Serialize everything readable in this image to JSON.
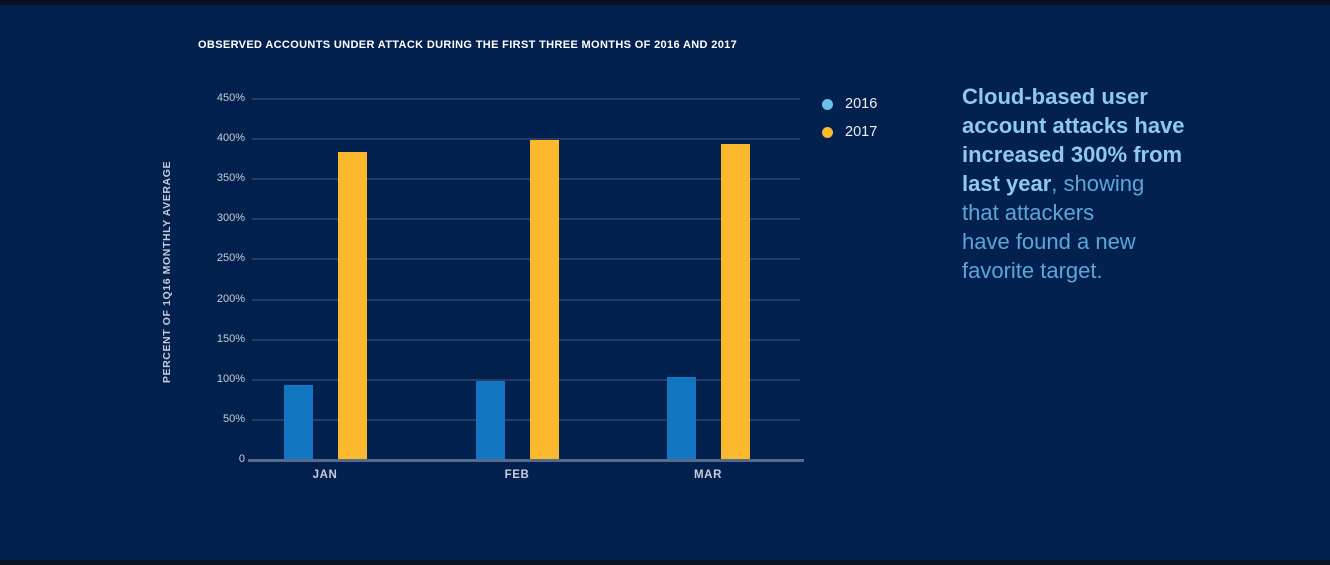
{
  "page": {
    "background_color": "#03214E",
    "edge_strip_color": "#0A1322"
  },
  "chart_data": {
    "type": "bar",
    "title": "OBSERVED ACCOUNTS UNDER ATTACK DURING THE FIRST THREE MONTHS OF 2016 AND 2017",
    "ylabel": "PERCENT OF 1Q16 MONTHLY AVERAGE",
    "xlabel": "",
    "categories": [
      "JAN",
      "FEB",
      "MAR"
    ],
    "series": [
      {
        "name": "2016",
        "bar_color": "#1376C3",
        "legend_dot_color": "#6CC0EA",
        "values": [
          95,
          100,
          105
        ]
      },
      {
        "name": "2017",
        "bar_color": "#FDB92D",
        "legend_dot_color": "#FDB92D",
        "values": [
          385,
          400,
          395
        ]
      }
    ],
    "y_ticks": [
      {
        "value": 450,
        "label": "450%"
      },
      {
        "value": 400,
        "label": "400%"
      },
      {
        "value": 350,
        "label": "350%"
      },
      {
        "value": 300,
        "label": "300%"
      },
      {
        "value": 250,
        "label": "250%"
      },
      {
        "value": 200,
        "label": "200%"
      },
      {
        "value": 150,
        "label": "150%"
      },
      {
        "value": 100,
        "label": "100%"
      },
      {
        "value": 50,
        "label": "50%"
      },
      {
        "value": 0,
        "label": "0"
      }
    ],
    "ylim": [
      0,
      450
    ],
    "grid": true,
    "legend_position": "right-of-plot"
  },
  "colors": {
    "grid_line": "#273B63",
    "axis_line": "#566A8C",
    "tick_label": "#C7CDD8",
    "title": "#FFFFFF",
    "callout_bold": "#8FC9F0",
    "callout_regular": "#5CA6DA"
  },
  "callout": {
    "bold_text": "Cloud-based user account attacks have increased 300% from last year",
    "regular_text": ", showing that attackers have found a new favorite target.",
    "lines": [
      {
        "b": "Cloud-based user",
        "r": ""
      },
      {
        "b": "account attacks have",
        "r": ""
      },
      {
        "b": "increased 300% from",
        "r": ""
      },
      {
        "b": "last year",
        "r": ", showing"
      },
      {
        "b": "",
        "r": "that attackers"
      },
      {
        "b": "",
        "r": "have found a new"
      },
      {
        "b": "",
        "r": "favorite target."
      }
    ]
  }
}
